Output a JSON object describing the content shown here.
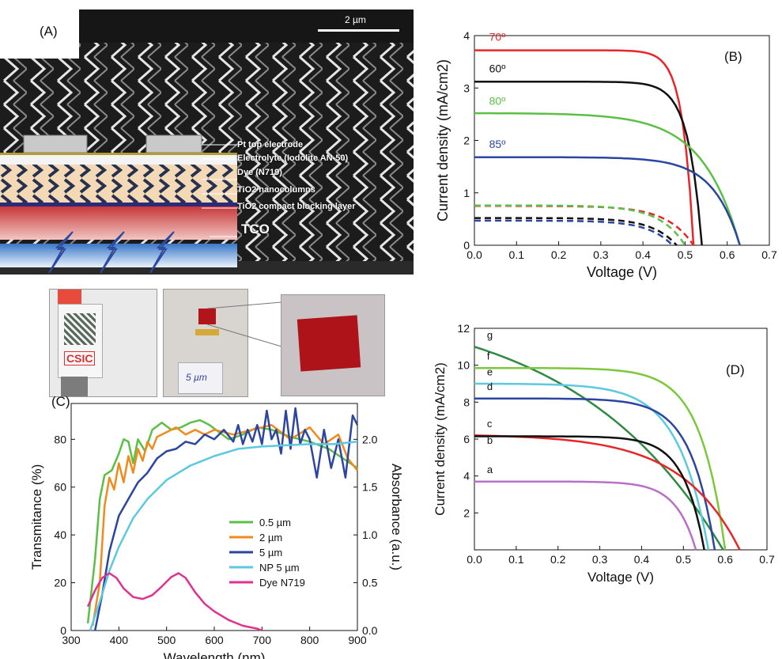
{
  "panels": {
    "a": "(A)",
    "b": "(B)",
    "c": "(C)",
    "d": "(D)"
  },
  "sem": {
    "scale_label": "2 µm",
    "layers": [
      "Pt top electrode",
      "Electrolyte (Iodolite AN-50)",
      "Dye (N719)",
      "TiO2 nanocolumns",
      "TiO2 compact blocking layer",
      "TCO"
    ],
    "photo_logo": "CSIC",
    "photo_handwriting": "5 µm"
  },
  "colors": {
    "red": "#e8262a",
    "black": "#111111",
    "green": "#5cbf46",
    "blue": "#2b45a0",
    "orange": "#f08a1c",
    "cyan": "#5cc9e0",
    "magenta": "#e0318f",
    "lime": "#7cc83c",
    "violet": "#b870c8",
    "darkgreen": "#2f8a44"
  },
  "chart_data": [
    {
      "id": "B",
      "type": "line",
      "xlabel": "Voltage (V)",
      "ylabel": "Current density (mA/cm2)",
      "xlim": [
        0,
        0.7
      ],
      "ylim": [
        0,
        4
      ],
      "xticks": [
        "0.0",
        "0.1",
        "0.2",
        "0.3",
        "0.4",
        "0.5",
        "0.6",
        "0.7"
      ],
      "yticks": [
        "0",
        "1",
        "2",
        "3",
        "4"
      ],
      "series": [
        {
          "name": "70º",
          "color": "#e8262a",
          "dashed": false,
          "jsc": 3.72,
          "voc": 0.52,
          "k": 0.05
        },
        {
          "name": "60º",
          "color": "#111111",
          "dashed": false,
          "jsc": 3.12,
          "voc": 0.54,
          "k": 0.06
        },
        {
          "name": "80º",
          "color": "#5cbf46",
          "dashed": false,
          "jsc": 2.52,
          "voc": 0.63,
          "k": 0.14
        },
        {
          "name": "85º",
          "color": "#2b45a0",
          "dashed": false,
          "jsc": 1.68,
          "voc": 0.63,
          "k": 0.1
        },
        {
          "name": "",
          "color": "#e8262a",
          "dashed": true,
          "jsc": 0.75,
          "voc": 0.52,
          "k": 0.12
        },
        {
          "name": "",
          "color": "#5cbf46",
          "dashed": true,
          "jsc": 0.76,
          "voc": 0.5,
          "k": 0.12
        },
        {
          "name": "",
          "color": "#111111",
          "dashed": true,
          "jsc": 0.52,
          "voc": 0.48,
          "k": 0.12
        },
        {
          "name": "",
          "color": "#2b45a0",
          "dashed": true,
          "jsc": 0.47,
          "voc": 0.47,
          "k": 0.12
        }
      ]
    },
    {
      "id": "C",
      "type": "line",
      "xlabel": "Wavelength (nm)",
      "ylabel": "Transmitance (%)",
      "ylabel_right": "Absorbance (a.u.)",
      "xlim": [
        300,
        900
      ],
      "ylim": [
        0,
        95
      ],
      "ylim_right": [
        0,
        2.375
      ],
      "xticks": [
        "300",
        "400",
        "500",
        "600",
        "700",
        "800",
        "900"
      ],
      "yticks": [
        "0",
        "20",
        "40",
        "60",
        "80"
      ],
      "yticks_right": [
        "0.0",
        "0.5",
        "1.0",
        "1.5",
        "2.0"
      ],
      "legend": [
        "0.5 µm",
        "2 µm",
        "5 µm",
        "NP 5 µm",
        "Dye N719"
      ],
      "series": [
        {
          "name": "0.5 µm",
          "color": "#5cbf46",
          "x": [
            335,
            350,
            360,
            370,
            385,
            400,
            410,
            420,
            430,
            440,
            455,
            470,
            490,
            510,
            530,
            550,
            570,
            590,
            610,
            630,
            660,
            690,
            720,
            760,
            800,
            840,
            870,
            900
          ],
          "y": [
            3,
            30,
            55,
            65,
            67,
            74,
            80,
            79,
            70,
            80,
            75,
            84,
            87,
            84,
            85,
            87,
            88,
            86,
            83,
            80,
            82,
            85,
            84,
            81,
            79,
            76,
            72,
            68
          ]
        },
        {
          "name": "2 µm",
          "color": "#f08a1c",
          "x": [
            345,
            360,
            370,
            380,
            390,
            400,
            410,
            420,
            430,
            440,
            450,
            460,
            470,
            480,
            500,
            520,
            540,
            560,
            580,
            600,
            640,
            680,
            720,
            760,
            800,
            830,
            860,
            880,
            900
          ],
          "y": [
            2,
            20,
            52,
            64,
            59,
            70,
            62,
            73,
            66,
            76,
            71,
            79,
            76,
            81,
            83,
            85,
            82,
            84,
            82,
            84,
            82,
            84,
            86,
            80,
            85,
            78,
            82,
            72,
            67
          ]
        },
        {
          "name": "5 µm",
          "color": "#2b45a0",
          "x": [
            350,
            365,
            380,
            400,
            420,
            440,
            460,
            480,
            500,
            520,
            540,
            560,
            580,
            600,
            620,
            640,
            650,
            660,
            670,
            680,
            690,
            700,
            710,
            720,
            730,
            740,
            750,
            760,
            770,
            780,
            790,
            800,
            815,
            830,
            845,
            860,
            875,
            890,
            900
          ],
          "y": [
            0,
            15,
            33,
            48,
            55,
            62,
            66,
            72,
            75,
            76,
            79,
            78,
            82,
            80,
            84,
            79,
            86,
            78,
            84,
            79,
            86,
            78,
            92,
            80,
            84,
            74,
            92,
            76,
            93,
            78,
            84,
            80,
            64,
            84,
            68,
            80,
            64,
            90,
            86
          ]
        },
        {
          "name": "NP 5 µm",
          "color": "#5cc9e0",
          "x": [
            340,
            360,
            380,
            400,
            430,
            460,
            500,
            550,
            600,
            650,
            700,
            750,
            800,
            850,
            900
          ],
          "y": [
            0,
            12,
            25,
            35,
            47,
            55,
            63,
            69,
            73,
            76,
            77,
            77.5,
            78,
            78,
            79
          ]
        },
        {
          "name": "Dye N719",
          "color": "#e0318f",
          "axis": "right",
          "x": [
            335,
            350,
            365,
            380,
            395,
            410,
            430,
            450,
            470,
            490,
            510,
            525,
            540,
            560,
            580,
            600,
            630,
            660,
            690,
            700
          ],
          "y": [
            0.25,
            0.42,
            0.55,
            0.6,
            0.55,
            0.44,
            0.35,
            0.33,
            0.37,
            0.46,
            0.56,
            0.6,
            0.55,
            0.4,
            0.28,
            0.2,
            0.11,
            0.05,
            0.02,
            0.0
          ]
        }
      ]
    },
    {
      "id": "D",
      "type": "line",
      "xlabel": "Voltage (V)",
      "ylabel": "Current density (mA/cm2)",
      "xlim": [
        0,
        0.7
      ],
      "ylim": [
        0,
        12
      ],
      "xticks": [
        "0.0",
        "0.1",
        "0.2",
        "0.3",
        "0.4",
        "0.5",
        "0.6",
        "0.7"
      ],
      "yticks": [
        "2",
        "4",
        "6",
        "8",
        "10",
        "12"
      ],
      "series": [
        {
          "name": "g",
          "color": "#2f8a44",
          "jsc": 11.0,
          "voc": 0.595,
          "k": 0.6
        },
        {
          "name": "f",
          "color": "#7cc83c",
          "jsc": 9.85,
          "voc": 0.6,
          "k": 0.1
        },
        {
          "name": "e",
          "color": "#5cc9e0",
          "jsc": 9.0,
          "voc": 0.56,
          "k": 0.13
        },
        {
          "name": "d",
          "color": "#2b45a0",
          "jsc": 8.2,
          "voc": 0.575,
          "k": 0.1
        },
        {
          "name": "c",
          "color": "#e8262a",
          "jsc": 6.2,
          "voc": 0.635,
          "k": 0.22
        },
        {
          "name": "b",
          "color": "#111111",
          "jsc": 6.15,
          "voc": 0.55,
          "k": 0.09
        },
        {
          "name": "a",
          "color": "#b870c8",
          "jsc": 3.7,
          "voc": 0.53,
          "k": 0.09
        }
      ]
    }
  ]
}
